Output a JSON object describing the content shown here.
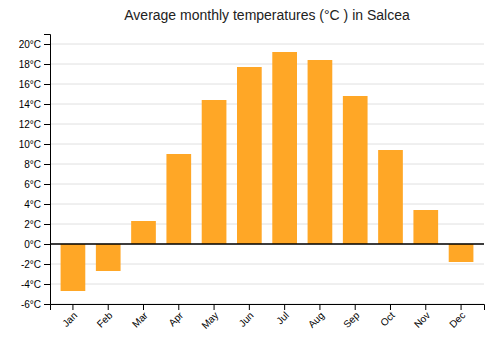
{
  "chart_data": {
    "type": "bar",
    "title": "Average monthly temperatures (°C ) in Salcea",
    "categories": [
      "Jan",
      "Feb",
      "Mar",
      "Apr",
      "May",
      "Jun",
      "Jul",
      "Aug",
      "Sep",
      "Oct",
      "Nov",
      "Dec"
    ],
    "values": [
      -4.7,
      -2.7,
      2.3,
      9.0,
      14.4,
      17.7,
      19.2,
      18.4,
      14.8,
      9.4,
      3.4,
      -1.8
    ],
    "color": "#FFA726",
    "ylim": [
      -6,
      21
    ],
    "yticks": [
      {
        "value": -6,
        "label": "-6°C"
      },
      {
        "value": -4,
        "label": "-4°C"
      },
      {
        "value": -2,
        "label": "-2°C"
      },
      {
        "value": 0,
        "label": "0°C"
      },
      {
        "value": 2,
        "label": "2°C"
      },
      {
        "value": 4,
        "label": "4°C"
      },
      {
        "value": 6,
        "label": "6°C"
      },
      {
        "value": 8,
        "label": "8°C"
      },
      {
        "value": 10,
        "label": "10°C"
      },
      {
        "value": 12,
        "label": "12°C"
      },
      {
        "value": 14,
        "label": "14°C"
      },
      {
        "value": 16,
        "label": "16°C"
      },
      {
        "value": 18,
        "label": "18°C"
      },
      {
        "value": 20,
        "label": "20°C"
      }
    ],
    "grid": true
  }
}
